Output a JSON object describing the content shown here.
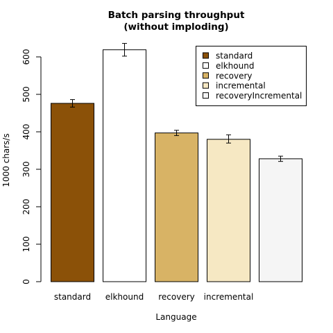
{
  "chart_data": {
    "type": "bar",
    "title_lines": [
      "Batch parsing throughput",
      "(without imploding)"
    ],
    "xlabel": "Language",
    "ylabel": "1000 chars/s",
    "ylim": [
      0,
      620
    ],
    "yticks": [
      0,
      100,
      200,
      300,
      400,
      500,
      600
    ],
    "categories": [
      "standard",
      "elkhound",
      "recovery",
      "incremental",
      ""
    ],
    "values": [
      476,
      619,
      397,
      380,
      328
    ],
    "errors": [
      [
        466,
        486
      ],
      [
        602,
        636
      ],
      [
        390,
        404
      ],
      [
        370,
        392
      ],
      [
        321,
        335
      ]
    ],
    "colors": [
      "#8B5108",
      "#FFFFFF",
      "#D8B365",
      "#F6E8C3",
      "#F5F5F5"
    ],
    "legend": {
      "placement": "top-right",
      "entries": [
        {
          "label": "standard",
          "color": "#8B5108"
        },
        {
          "label": "elkhound",
          "color": "#FFFFFF"
        },
        {
          "label": "recovery",
          "color": "#D8B365"
        },
        {
          "label": "incremental",
          "color": "#F6E8C3"
        },
        {
          "label": "recoveryIncremental",
          "color": "#F5F5F5"
        }
      ]
    },
    "grid": false
  }
}
